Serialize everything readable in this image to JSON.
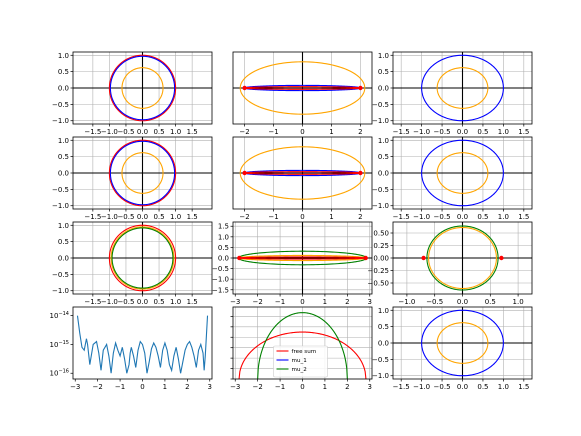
{
  "chart_data": [
    {
      "id": "r0c0",
      "type": "line",
      "xlim": [
        -2.1,
        2.1
      ],
      "ylim": [
        -1.1,
        1.1
      ],
      "xticks": [
        -1.5,
        -1.0,
        -0.5,
        0.0,
        0.5,
        1.0,
        1.5
      ],
      "yticks": [
        -1.0,
        -0.5,
        0.0,
        0.5,
        1.0
      ],
      "xticklabels": [
        "−1.5",
        "−1.0",
        "−0.5",
        "0.0",
        "0.5",
        "1.0",
        "1.5"
      ],
      "yticklabels": [
        "−1.0",
        "−0.5",
        "0.0",
        "0.5",
        "1.0"
      ],
      "grid": true,
      "axes_cross": true,
      "curves": [
        {
          "kind": "ellipse",
          "color": "#ff0000",
          "a": 1.0,
          "b": 1.0
        },
        {
          "kind": "ellipse",
          "color": "#0000ff",
          "a": 0.97,
          "b": 0.97
        },
        {
          "kind": "ellipse",
          "color": "#ffa500",
          "a": 0.62,
          "b": 0.62
        }
      ]
    },
    {
      "id": "r0c1",
      "type": "line",
      "xlim": [
        -2.4,
        2.4
      ],
      "ylim": [
        -1.1,
        1.1
      ],
      "xticks": [
        -2,
        -1,
        0,
        1,
        2
      ],
      "yticks": [],
      "xticklabels": [
        "−2",
        "−1",
        "0",
        "1",
        "2"
      ],
      "yticklabels": [],
      "grid": true,
      "axes_cross": true,
      "curves": [
        {
          "kind": "ellipse",
          "color": "#ffa500",
          "a": 2.15,
          "b": 0.8
        },
        {
          "kind": "ellipse",
          "color": "#0000ff",
          "a": 2.0,
          "b": 0.08
        },
        {
          "kind": "ellipse",
          "color": "#ff0000",
          "a": 2.0,
          "b": 0.04
        }
      ],
      "points": [
        {
          "x": -2.0,
          "y": 0.0,
          "color": "#ff0000"
        },
        {
          "x": 2.0,
          "y": 0.0,
          "color": "#ff0000"
        }
      ]
    },
    {
      "id": "r0c2",
      "type": "line",
      "xlim": [
        -1.7,
        1.7
      ],
      "ylim": [
        -1.1,
        1.1
      ],
      "xticks": [
        -1.5,
        -1.0,
        -0.5,
        0.0,
        0.5,
        1.0,
        1.5
      ],
      "yticks": [
        -1.0,
        -0.5,
        0.0,
        0.5,
        1.0
      ],
      "xticklabels": [
        "−1.5",
        "−1.0",
        "−0.5",
        "0.0",
        "0.5",
        "1.0",
        "1.5"
      ],
      "yticklabels": [
        "−1.0",
        "−0.5",
        "0.0",
        "0.5",
        "1.0"
      ],
      "grid": true,
      "axes_cross": true,
      "curves": [
        {
          "kind": "ellipse",
          "color": "#0000ff",
          "a": 1.0,
          "b": 1.0
        },
        {
          "kind": "ellipse",
          "color": "#ffa500",
          "a": 0.62,
          "b": 0.62
        }
      ]
    },
    {
      "id": "r1c0",
      "type": "line",
      "xlim": [
        -2.1,
        2.1
      ],
      "ylim": [
        -1.1,
        1.1
      ],
      "xticks": [
        -1.5,
        -1.0,
        -0.5,
        0.0,
        0.5,
        1.0,
        1.5
      ],
      "yticks": [
        -1.0,
        -0.5,
        0.0,
        0.5,
        1.0
      ],
      "xticklabels": [
        "−1.5",
        "−1.0",
        "−0.5",
        "0.0",
        "0.5",
        "1.0",
        "1.5"
      ],
      "yticklabels": [
        "−1.0",
        "−0.5",
        "0.0",
        "0.5",
        "1.0"
      ],
      "grid": true,
      "axes_cross": true,
      "curves": [
        {
          "kind": "ellipse",
          "color": "#ff0000",
          "a": 1.0,
          "b": 1.0
        },
        {
          "kind": "ellipse",
          "color": "#0000ff",
          "a": 0.97,
          "b": 0.97
        },
        {
          "kind": "ellipse",
          "color": "#ffa500",
          "a": 0.62,
          "b": 0.62
        }
      ]
    },
    {
      "id": "r1c1",
      "type": "line",
      "xlim": [
        -2.4,
        2.4
      ],
      "ylim": [
        -1.1,
        1.1
      ],
      "xticks": [
        -2,
        -1,
        0,
        1,
        2
      ],
      "yticks": [],
      "xticklabels": [
        "−2",
        "−1",
        "0",
        "1",
        "2"
      ],
      "yticklabels": [],
      "grid": true,
      "axes_cross": true,
      "curves": [
        {
          "kind": "ellipse",
          "color": "#ffa500",
          "a": 2.15,
          "b": 0.8
        },
        {
          "kind": "ellipse",
          "color": "#0000ff",
          "a": 2.0,
          "b": 0.08
        },
        {
          "kind": "ellipse",
          "color": "#ff0000",
          "a": 2.0,
          "b": 0.04
        }
      ],
      "points": [
        {
          "x": -2.0,
          "y": 0.0,
          "color": "#ff0000"
        },
        {
          "x": 2.0,
          "y": 0.0,
          "color": "#ff0000"
        }
      ]
    },
    {
      "id": "r1c2",
      "type": "line",
      "xlim": [
        -1.7,
        1.7
      ],
      "ylim": [
        -1.1,
        1.1
      ],
      "xticks": [
        -1.5,
        -1.0,
        -0.5,
        0.0,
        0.5,
        1.0,
        1.5
      ],
      "yticks": [
        -1.0,
        -0.5,
        0.0,
        0.5,
        1.0
      ],
      "xticklabels": [
        "−1.5",
        "−1.0",
        "−0.5",
        "0.0",
        "0.5",
        "1.0",
        "1.5"
      ],
      "yticklabels": [
        "−1.0",
        "−0.5",
        "0.0",
        "0.5",
        "1.0"
      ],
      "grid": true,
      "axes_cross": true,
      "curves": [
        {
          "kind": "ellipse",
          "color": "#0000ff",
          "a": 1.0,
          "b": 1.0
        },
        {
          "kind": "ellipse",
          "color": "#ffa500",
          "a": 0.62,
          "b": 0.62
        }
      ]
    },
    {
      "id": "r2c0",
      "type": "line",
      "xlim": [
        -2.1,
        2.1
      ],
      "ylim": [
        -1.1,
        1.1
      ],
      "xticks": [
        -1.5,
        -1.0,
        -0.5,
        0.0,
        0.5,
        1.0,
        1.5
      ],
      "yticks": [
        -1.0,
        -0.5,
        0.0,
        0.5,
        1.0
      ],
      "xticklabels": [
        "−1.5",
        "−1.0",
        "−0.5",
        "0.0",
        "0.5",
        "1.0",
        "1.5"
      ],
      "yticklabels": [
        "−1.0",
        "−0.5",
        "0.0",
        "0.5",
        "1.0"
      ],
      "grid": true,
      "axes_cross": true,
      "curves": [
        {
          "kind": "ellipse",
          "color": "#ff0000",
          "a": 1.0,
          "b": 1.0
        },
        {
          "kind": "ellipse",
          "color": "#ffa500",
          "a": 0.95,
          "b": 0.95
        },
        {
          "kind": "ellipse",
          "color": "#008000",
          "a": 0.92,
          "b": 0.92
        }
      ]
    },
    {
      "id": "r2c1",
      "type": "line",
      "xlim": [
        -3.1,
        3.1
      ],
      "ylim": [
        -1.7,
        1.7
      ],
      "xticks": [
        -3,
        -2,
        -1,
        0,
        1,
        2,
        3
      ],
      "yticks": [
        -1.5,
        -1.0,
        -0.5,
        0.0,
        0.5,
        1.0,
        1.5
      ],
      "xticklabels": [
        "−3",
        "−2",
        "−1",
        "0",
        "1",
        "2",
        "3"
      ],
      "yticklabels": [
        "−1.5",
        "−1.0",
        "−0.5",
        "0.0",
        "0.5",
        "1.0",
        "1.5"
      ],
      "grid": true,
      "axes_cross": true,
      "curves": [
        {
          "kind": "ellipse",
          "color": "#008000",
          "a": 2.85,
          "b": 0.32
        },
        {
          "kind": "ellipse",
          "color": "#ffa500",
          "a": 2.85,
          "b": 0.12
        },
        {
          "kind": "ellipse",
          "color": "#ff0000",
          "a": 2.85,
          "b": 0.05
        }
      ],
      "points": [
        {
          "x": -2.82,
          "y": 0.0,
          "color": "#ff0000"
        },
        {
          "x": 2.82,
          "y": 0.0,
          "color": "#ff0000"
        }
      ]
    },
    {
      "id": "r2c2",
      "type": "line",
      "xlim": [
        -1.25,
        1.25
      ],
      "ylim": [
        -0.72,
        0.72
      ],
      "xticks": [
        -1.0,
        -0.5,
        0.0,
        0.5,
        1.0
      ],
      "yticks": [
        -0.5,
        -0.25,
        0.0,
        0.25,
        0.5
      ],
      "xticklabels": [
        "−1.0",
        "−0.5",
        "0.0",
        "0.5",
        "1.0"
      ],
      "yticklabels": [
        "−0.50",
        "−0.25",
        "0.00",
        "0.25",
        "0.50"
      ],
      "grid": true,
      "axes_cross": true,
      "curves": [
        {
          "kind": "ellipse",
          "color": "#008000",
          "a": 0.64,
          "b": 0.64
        },
        {
          "kind": "ellipse",
          "color": "#ffa500",
          "a": 0.61,
          "b": 0.61
        }
      ],
      "points": [
        {
          "x": -0.7,
          "y": 0.0,
          "color": "#ff0000"
        },
        {
          "x": 0.7,
          "y": 0.0,
          "color": "#ff0000"
        }
      ]
    },
    {
      "id": "r3c0",
      "type": "line",
      "xlim": [
        -3.1,
        3.1
      ],
      "ylim": [
        -16.2,
        -13.7
      ],
      "log_y": true,
      "xticks": [
        -3,
        -2,
        -1,
        0,
        1,
        2,
        3
      ],
      "yticks": [
        -14,
        -15,
        -16
      ],
      "xticklabels": [
        "−3",
        "−2",
        "−1",
        "0",
        "1",
        "2",
        "3"
      ],
      "yticklabels": [
        "−14",
        "−15",
        "−16"
      ],
      "ytick_base": "10",
      "grid": false,
      "axes_cross": false,
      "curves": [
        {
          "kind": "polyline",
          "color": "#1f77b4",
          "x": [
            -2.9,
            -2.8,
            -2.7,
            -2.6,
            -2.5,
            -2.45,
            -2.35,
            -2.2,
            -2.05,
            -1.95,
            -1.85,
            -1.75,
            -1.6,
            -1.5,
            -1.4,
            -1.3,
            -1.2,
            -1.1,
            -1.0,
            -0.9,
            -0.8,
            -0.7,
            -0.6,
            -0.55,
            -0.5,
            -0.4,
            -0.3,
            -0.2,
            -0.1,
            0.0,
            0.1,
            0.2,
            0.3,
            0.4,
            0.5,
            0.6,
            0.7,
            0.8,
            0.9,
            1.0,
            1.1,
            1.2,
            1.3,
            1.4,
            1.5,
            1.6,
            1.7,
            1.8,
            1.9,
            2.0,
            2.1,
            2.2,
            2.3,
            2.4,
            2.5,
            2.6,
            2.7,
            2.75,
            2.8,
            2.85,
            2.9
          ],
          "y": [
            -14.0,
            -14.6,
            -15.1,
            -15.2,
            -14.8,
            -15.0,
            -15.7,
            -15.0,
            -14.9,
            -15.3,
            -15.9,
            -15.2,
            -15.0,
            -15.4,
            -16.0,
            -15.3,
            -14.95,
            -15.2,
            -15.4,
            -15.1,
            -15.5,
            -16.0,
            -15.7,
            -15.3,
            -15.1,
            -15.4,
            -15.8,
            -15.2,
            -14.9,
            -15.0,
            -15.3,
            -16.0,
            -15.6,
            -15.15,
            -14.95,
            -15.1,
            -15.4,
            -15.8,
            -15.2,
            -14.95,
            -15.2,
            -15.7,
            -15.9,
            -15.4,
            -15.1,
            -15.5,
            -16.0,
            -15.6,
            -15.2,
            -15.0,
            -14.9,
            -15.1,
            -15.4,
            -15.8,
            -15.2,
            -15.0,
            -15.3,
            -15.9,
            -15.4,
            -14.7,
            -14.0
          ]
        }
      ]
    },
    {
      "id": "r3c1",
      "type": "line",
      "xlim": [
        -3.1,
        3.1
      ],
      "ylim": [
        0.0,
        0.345
      ],
      "xticks": [
        -3,
        -2,
        -1,
        0,
        1,
        2,
        3
      ],
      "yticks": [
        0.0,
        0.05,
        0.1,
        0.15,
        0.2,
        0.25,
        0.3
      ],
      "xticklabels": [
        "−3",
        "−2",
        "−1",
        "0",
        "1",
        "2",
        "3"
      ],
      "yticklabels": [],
      "grid": true,
      "axes_cross": false,
      "curves": [
        {
          "kind": "semicircle",
          "color": "#ff0000",
          "r": 2.83,
          "peak": 0.225
        },
        {
          "kind": "semicircle",
          "color": "#008000",
          "r": 2.0,
          "peak": 0.318
        }
      ],
      "legend": [
        {
          "label": "free sum",
          "color": "#ff0000"
        },
        {
          "label": "mu_1",
          "color": "#0000ff"
        },
        {
          "label": "mu_2",
          "color": "#008000"
        }
      ],
      "legend_loc": "lower-center"
    },
    {
      "id": "r3c2",
      "type": "line",
      "xlim": [
        -1.7,
        1.7
      ],
      "ylim": [
        -1.1,
        1.1
      ],
      "xticks": [
        -1.5,
        -1.0,
        -0.5,
        0.0,
        0.5,
        1.0,
        1.5
      ],
      "yticks": [
        -1.0,
        -0.5,
        0.0,
        0.5,
        1.0
      ],
      "xticklabels": [
        "−1.5",
        "−1.0",
        "−0.5",
        "0.0",
        "0.5",
        "1.0",
        "1.5"
      ],
      "yticklabels": [
        "−1.0",
        "−0.5",
        "0.0",
        "0.5",
        "1.0"
      ],
      "grid": true,
      "axes_cross": true,
      "curves": [
        {
          "kind": "ellipse",
          "color": "#0000ff",
          "a": 1.0,
          "b": 1.0
        },
        {
          "kind": "ellipse",
          "color": "#ffa500",
          "a": 0.62,
          "b": 0.62
        }
      ]
    }
  ]
}
